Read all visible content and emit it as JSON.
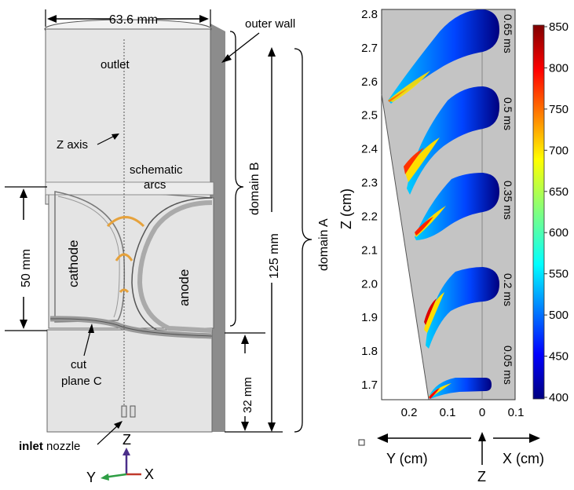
{
  "schematic": {
    "width_label": "63.6 mm",
    "outer_wall_label": "outer wall",
    "outlet_label": "outlet",
    "z_axis_label": "Z axis",
    "schematic_arcs_line1": "schematic",
    "schematic_arcs_line2": "arcs",
    "domain_b_label": "domain B",
    "domain_a_label": "domain A",
    "height_125_label": "125 mm",
    "height_50_label": "50 mm",
    "height_32_label": "32 mm",
    "cathode_label": "cathode",
    "anode_label": "anode",
    "cut_plane_line1": "cut",
    "cut_plane_line2": "plane C",
    "inlet_bold": "inlet",
    "inlet_rest": " nozzle",
    "triad_z": "Z",
    "triad_x": "X",
    "triad_y": "Y"
  },
  "plot": {
    "ylabel": "Z (cm)",
    "yticks": [
      "1.7",
      "1.8",
      "1.9",
      "2.0",
      "2.1",
      "2.2",
      "2.3",
      "2.4",
      "2.5",
      "2.6",
      "2.7",
      "2.8"
    ],
    "xticks": [
      "0.2",
      "0.1",
      "0",
      "0.1"
    ],
    "time_labels": [
      "0.65 ms",
      "0.5 ms",
      "0.35 ms",
      "0.2 ms",
      "0.05 ms"
    ],
    "y_axis_text": "Y (cm)",
    "x_axis_text": "X (cm)",
    "z_axis_text": "Z",
    "colorbar_ticks": [
      "850",
      "800",
      "750",
      "700",
      "650",
      "600",
      "550",
      "500",
      "450",
      "400"
    ]
  },
  "colors": {
    "arc": "#e6a23c",
    "wall": "#8c8c8c",
    "body": "#e6e6e6",
    "plot_bg": "#c4c4c4"
  },
  "chart_data": {
    "type": "heatmap",
    "ylabel": "Z (cm)",
    "ylim": [
      1.65,
      2.82
    ],
    "xlim": [
      0.28,
      -0.1
    ],
    "colorbar": {
      "min": 400,
      "max": 850,
      "ticks": [
        850,
        800,
        750,
        700,
        650,
        600,
        550,
        500,
        450,
        400
      ]
    },
    "snapshots": [
      {
        "time": "0.65 ms",
        "z_top": 2.8,
        "z_bottom": 2.54
      },
      {
        "time": "0.5 ms",
        "z_top": 2.57,
        "z_bottom": 2.26
      },
      {
        "time": "0.35 ms",
        "z_top": 2.33,
        "z_bottom": 2.1
      },
      {
        "time": "0.2 ms",
        "z_top": 2.04,
        "z_bottom": 1.81
      },
      {
        "time": "0.05 ms",
        "z_top": 1.71,
        "z_bottom": 1.66
      }
    ]
  }
}
